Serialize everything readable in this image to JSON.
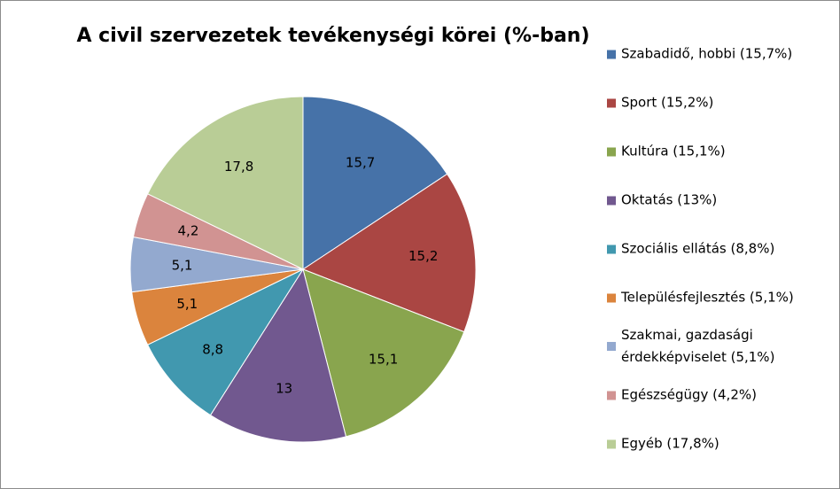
{
  "chart_data": {
    "type": "pie",
    "title": "A civil szervezetek tevékenységi körei (%-ban)",
    "categories": [
      "Szabadidő, hobbi (15,7%)",
      "Sport (15,2%)",
      "Kultúra (15,1%)",
      "Oktatás (13%)",
      "Szociális ellátás (8,8%)",
      "Településfejlesztés (5,1%)",
      "Szakmai, gazdasági érdekképviselet (5,1%)",
      "Egészségügy (4,2%)",
      "Egyéb (17,8%)"
    ],
    "values": [
      15.7,
      15.2,
      15.1,
      13,
      8.8,
      5.1,
      5.1,
      4.2,
      17.8
    ],
    "value_labels": [
      "15,7",
      "15,2",
      "15,1",
      "13",
      "8,8",
      "5,1",
      "5,1",
      "4,2",
      "17,8"
    ],
    "colors": [
      "#4672a8",
      "#aa4643",
      "#89a54e",
      "#71588f",
      "#4198af",
      "#db843d",
      "#93a9cf",
      "#d19392",
      "#b9cd96"
    ],
    "legend": "right"
  }
}
